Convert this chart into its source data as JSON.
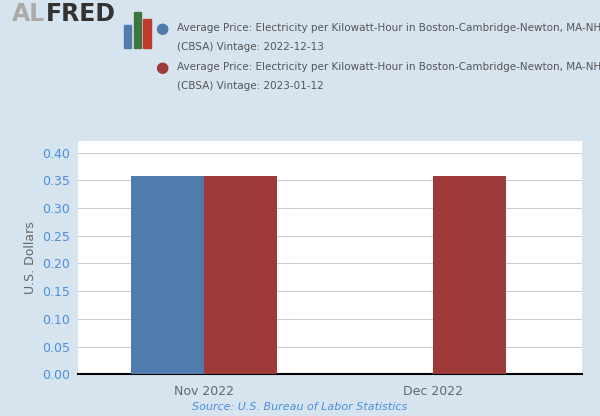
{
  "ylabel": "U.S. Dollars",
  "source_text": "Source: U.S. Bureau of Labor Statistics",
  "background_color": "#d6e4f0",
  "plot_bg_color": "#ffffff",
  "legend_entries": [
    "Average Price: Electricity per Kilowatt-Hour in Boston-Cambridge-Newton, MA-NH\n(CBSA) Vintage: 2022-12-13",
    "Average Price: Electricity per Kilowatt-Hour in Boston-Cambridge-Newton, MA-NH\n(CBSA) Vintage: 2023-01-12"
  ],
  "legend_colors": [
    "#4f7cac",
    "#9e3a3a"
  ],
  "categories": [
    "Nov 2022",
    "Dec 2022"
  ],
  "series": [
    {
      "color": "#4f7cac",
      "values": [
        0.358,
        null
      ]
    },
    {
      "color": "#9e3a3a",
      "values": [
        0.358,
        0.358
      ]
    }
  ],
  "ylim": [
    0.0,
    0.42
  ],
  "yticks": [
    0.0,
    0.05,
    0.1,
    0.15,
    0.2,
    0.25,
    0.3,
    0.35,
    0.4
  ],
  "bar_width": 0.32,
  "group_positions": [
    1.0,
    2.0
  ],
  "al_color": "#aaaaaa",
  "fred_color": "#333333",
  "icon_bar_colors": [
    "#4f7cac",
    "#3c763d",
    "#c0392b"
  ],
  "tick_label_color": "#4a90d9",
  "source_color": "#4a90d9",
  "xlabel_color": "#666666"
}
